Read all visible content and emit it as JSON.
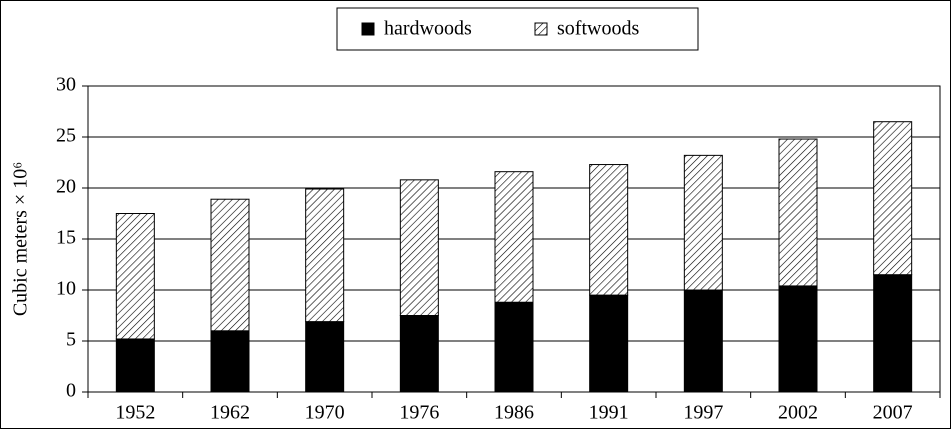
{
  "chart_data": {
    "type": "stacked_bar",
    "ylabel": "Cubic meters × 10⁶",
    "categories": [
      "1952",
      "1962",
      "1970",
      "1976",
      "1986",
      "1991",
      "1997",
      "2002",
      "2007"
    ],
    "series": [
      {
        "name": "hardwoods",
        "color": "#000000",
        "hatch": false,
        "values": [
          5.2,
          6.0,
          6.9,
          7.5,
          8.8,
          9.5,
          10.0,
          10.4,
          11.5
        ]
      },
      {
        "name": "softwoods",
        "color": "#000000",
        "hatch": true,
        "values": [
          12.3,
          12.9,
          13.0,
          13.3,
          12.8,
          12.8,
          13.2,
          14.4,
          15.0
        ]
      }
    ],
    "ylim": [
      0,
      30
    ],
    "yticks": [
      0,
      5,
      10,
      15,
      20,
      25,
      30
    ],
    "grid": true,
    "legend": "top"
  }
}
